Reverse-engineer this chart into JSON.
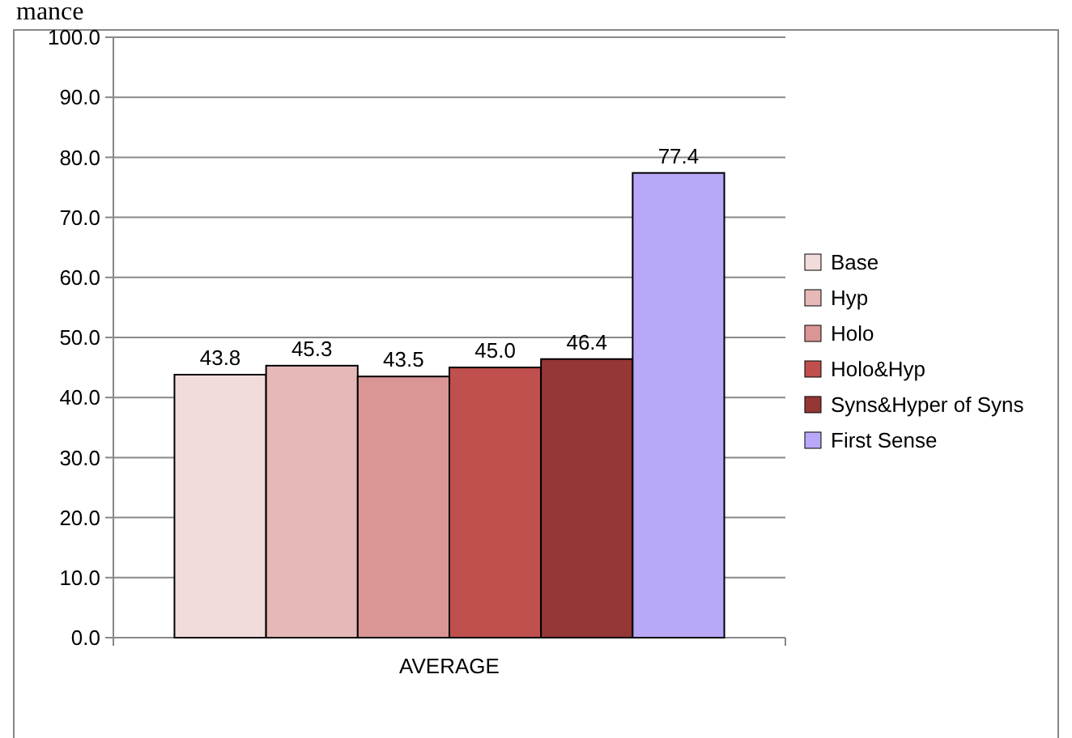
{
  "chart_data": {
    "type": "bar",
    "annotations": [
      "mance"
    ],
    "categories": [
      "AVERAGE"
    ],
    "series": [
      {
        "name": "Base",
        "color": "#f2dcdb",
        "values": [
          43.8
        ],
        "value_labels": [
          "43.8"
        ]
      },
      {
        "name": "Hyp",
        "color": "#e6b9b8",
        "values": [
          45.3
        ],
        "value_labels": [
          "45.3"
        ]
      },
      {
        "name": "Holo",
        "color": "#d99694",
        "values": [
          43.5
        ],
        "value_labels": [
          "43.5"
        ]
      },
      {
        "name": "Holo&Hyp",
        "color": "#c0504d",
        "values": [
          45.0
        ],
        "value_labels": [
          "45.0"
        ]
      },
      {
        "name": "Syns&Hyper of Syns",
        "color": "#953735",
        "values": [
          46.4
        ],
        "value_labels": [
          "46.4"
        ]
      },
      {
        "name": "First Sense",
        "color": "#b9a8f7",
        "values": [
          77.4
        ],
        "value_labels": [
          "77.4"
        ]
      }
    ],
    "ylim": [
      0,
      100
    ],
    "yticks": [
      {
        "value": 0,
        "label": "0.0"
      },
      {
        "value": 10,
        "label": "10.0"
      },
      {
        "value": 20,
        "label": "20.0"
      },
      {
        "value": 30,
        "label": "30.0"
      },
      {
        "value": 40,
        "label": "40.0"
      },
      {
        "value": 50,
        "label": "50.0"
      },
      {
        "value": 60,
        "label": "60.0"
      },
      {
        "value": 70,
        "label": "70.0"
      },
      {
        "value": 80,
        "label": "80.0"
      },
      {
        "value": 90,
        "label": "90.0"
      },
      {
        "value": 100,
        "label": "100.0"
      }
    ],
    "grid": "y",
    "legend": "right"
  }
}
